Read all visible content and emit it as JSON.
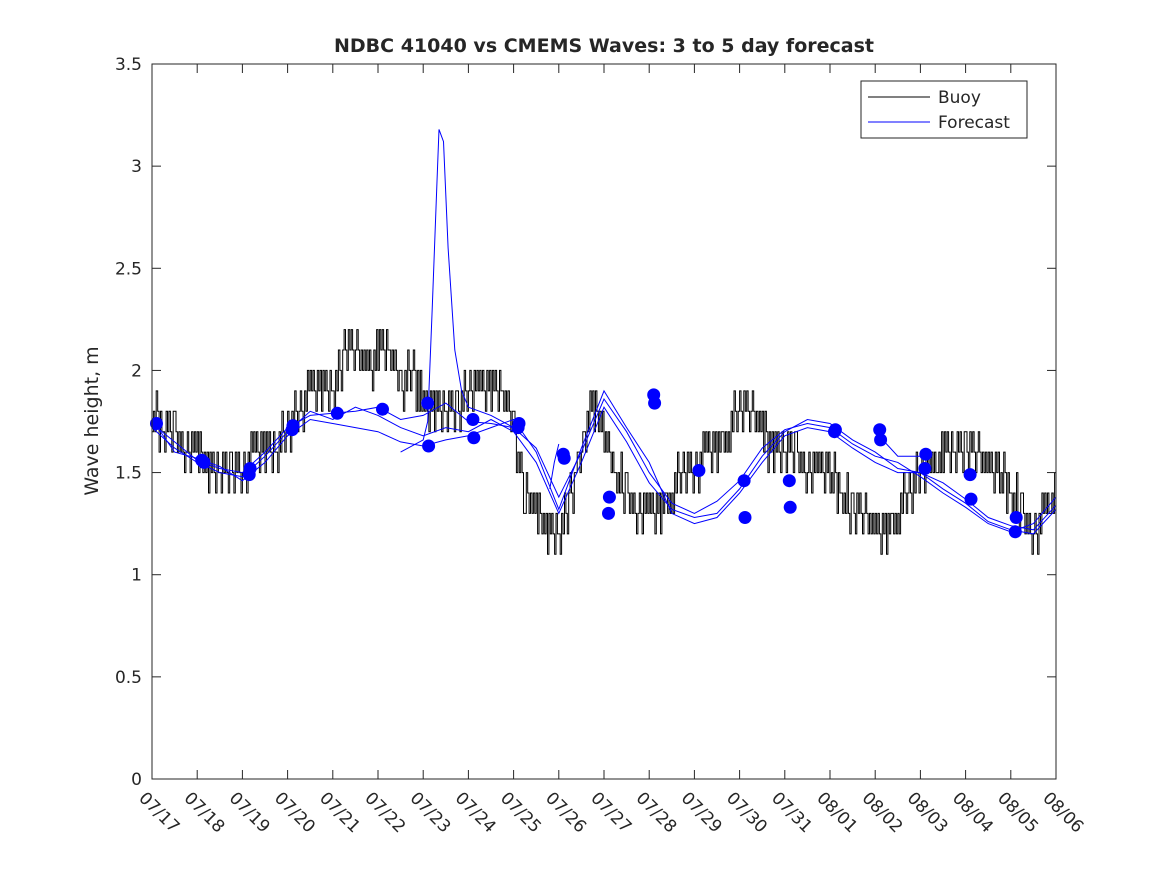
{
  "chart_data": {
    "type": "line",
    "title": "NDBC 41040 vs CMEMS Waves: 3 to 5 day forecast",
    "xlabel": "",
    "ylabel": "Wave height, m",
    "xlim": [
      "07/17",
      "08/06"
    ],
    "ylim": [
      0,
      3.5
    ],
    "yticks": [
      0,
      0.5,
      1,
      1.5,
      2,
      2.5,
      3,
      3.5
    ],
    "ytick_labels": [
      "0",
      "0.5",
      "1",
      "1.5",
      "2",
      "2.5",
      "3",
      "3.5"
    ],
    "xtick_labels": [
      "07/17",
      "07/18",
      "07/19",
      "07/20",
      "07/21",
      "07/22",
      "07/23",
      "07/24",
      "07/25",
      "07/26",
      "07/27",
      "07/28",
      "07/29",
      "07/30",
      "07/31",
      "08/01",
      "08/02",
      "08/03",
      "08/04",
      "08/05",
      "08/06"
    ],
    "grid": false,
    "legend_position": "top-right",
    "legend": [
      {
        "label": "Buoy",
        "color": "#000000"
      },
      {
        "label": "Forecast",
        "color": "#0000ff"
      }
    ],
    "buoy": {
      "name": "Buoy",
      "color": "#000000",
      "x": [
        0.0,
        0.25,
        0.5,
        0.75,
        1.0,
        1.25,
        1.5,
        1.75,
        2.0,
        2.25,
        2.5,
        2.75,
        3.0,
        3.25,
        3.5,
        3.75,
        4.0,
        4.25,
        4.5,
        4.75,
        5.0,
        5.25,
        5.5,
        5.75,
        6.0,
        6.25,
        6.5,
        6.75,
        7.0,
        7.25,
        7.5,
        7.75,
        8.0,
        8.25,
        8.5,
        8.75,
        9.0,
        9.25,
        9.5,
        9.75,
        10.0,
        10.25,
        10.5,
        10.75,
        11.0,
        11.25,
        11.5,
        11.75,
        12.0,
        12.25,
        12.5,
        12.75,
        13.0,
        13.25,
        13.5,
        13.75,
        14.0,
        14.25,
        14.5,
        14.75,
        15.0,
        15.25,
        15.5,
        15.75,
        16.0,
        16.25,
        16.5,
        16.75,
        17.0,
        17.25,
        17.5,
        17.75,
        18.0,
        18.25,
        18.5,
        18.75,
        19.0,
        19.25,
        19.5,
        19.75,
        20.0
      ],
      "y": [
        1.75,
        1.72,
        1.65,
        1.6,
        1.55,
        1.5,
        1.5,
        1.52,
        1.5,
        1.55,
        1.6,
        1.55,
        1.7,
        1.8,
        1.85,
        1.9,
        1.9,
        2.05,
        2.05,
        2.0,
        2.05,
        2.1,
        1.9,
        1.95,
        1.8,
        1.75,
        1.8,
        1.8,
        1.85,
        1.85,
        1.9,
        1.9,
        1.65,
        1.35,
        1.25,
        1.15,
        1.2,
        1.35,
        1.55,
        1.8,
        1.7,
        1.45,
        1.35,
        1.3,
        1.25,
        1.25,
        1.35,
        1.45,
        1.5,
        1.55,
        1.6,
        1.7,
        1.8,
        1.75,
        1.65,
        1.6,
        1.55,
        1.55,
        1.5,
        1.45,
        1.45,
        1.4,
        1.3,
        1.25,
        1.15,
        1.2,
        1.3,
        1.4,
        1.45,
        1.5,
        1.55,
        1.55,
        1.6,
        1.55,
        1.5,
        1.45,
        1.4,
        1.3,
        1.2,
        1.25,
        1.35
      ]
    },
    "series": [
      {
        "name": "Forecast",
        "color": "#0000ff",
        "x": [
          0.0,
          0.5,
          1.0,
          1.5,
          2.0,
          2.5,
          3.0,
          3.5,
          4.0,
          4.5,
          5.0,
          5.5,
          6.0,
          6.5,
          7.0,
          7.5,
          8.0,
          8.5,
          9.0,
          9.5,
          10.0,
          10.5,
          11.0,
          11.5,
          12.0,
          12.5,
          13.0,
          13.5,
          14.0,
          14.5,
          15.0,
          15.5,
          16.0,
          16.5,
          17.0,
          17.5,
          18.0,
          18.5,
          19.0,
          19.5,
          20.0
        ],
        "y": [
          1.74,
          1.65,
          1.56,
          1.52,
          1.5,
          1.6,
          1.72,
          1.78,
          1.79,
          1.8,
          1.82,
          1.76,
          1.78,
          1.84,
          1.75,
          1.74,
          1.72,
          1.62,
          1.38,
          1.6,
          1.86,
          1.7,
          1.5,
          1.35,
          1.3,
          1.36,
          1.46,
          1.62,
          1.71,
          1.74,
          1.72,
          1.64,
          1.58,
          1.55,
          1.48,
          1.4,
          1.33,
          1.25,
          1.21,
          1.25,
          1.38
        ]
      },
      {
        "name": "Forecast",
        "color": "#0000ff",
        "x": [
          0.0,
          0.5,
          1.0,
          1.5,
          2.0,
          2.5,
          3.0,
          3.5,
          4.0,
          4.5,
          5.0,
          5.5,
          6.0,
          6.5,
          7.0,
          7.5,
          8.0,
          8.5,
          9.0,
          9.5,
          10.0,
          10.5,
          11.0,
          11.5,
          12.0,
          12.5,
          13.0,
          13.5,
          14.0,
          14.5,
          15.0,
          15.5,
          16.0,
          16.5,
          17.0,
          17.5,
          18.0,
          18.5,
          19.0,
          19.5,
          20.0
        ],
        "y": [
          1.72,
          1.62,
          1.55,
          1.5,
          1.48,
          1.58,
          1.7,
          1.8,
          1.76,
          1.82,
          1.78,
          1.72,
          1.68,
          1.72,
          1.7,
          1.76,
          1.7,
          1.55,
          1.3,
          1.55,
          1.82,
          1.65,
          1.45,
          1.32,
          1.28,
          1.3,
          1.42,
          1.58,
          1.7,
          1.76,
          1.74,
          1.66,
          1.6,
          1.52,
          1.5,
          1.45,
          1.37,
          1.28,
          1.24,
          1.22,
          1.34
        ]
      },
      {
        "name": "Forecast",
        "color": "#0000ff",
        "x": [
          0.0,
          0.5,
          1.0,
          1.5,
          2.0,
          2.5,
          3.0,
          3.5,
          4.0,
          4.5,
          5.0,
          5.5,
          6.0,
          6.5,
          7.0,
          7.5,
          8.0,
          8.5,
          9.0,
          9.5,
          10.0,
          10.5,
          11.0,
          11.5,
          12.0,
          12.5,
          13.0,
          13.5,
          14.0,
          14.5,
          15.0,
          15.5,
          16.0,
          16.5,
          17.0,
          17.5,
          18.0,
          18.5,
          19.0,
          19.5,
          20.0
        ],
        "y": [
          1.76,
          1.6,
          1.57,
          1.53,
          1.46,
          1.55,
          1.68,
          1.76,
          1.74,
          1.72,
          1.7,
          1.65,
          1.63,
          1.66,
          1.68,
          1.72,
          1.76,
          1.6,
          1.32,
          1.62,
          1.9,
          1.72,
          1.55,
          1.3,
          1.25,
          1.28,
          1.4,
          1.55,
          1.68,
          1.72,
          1.7,
          1.62,
          1.55,
          1.5,
          1.5,
          1.42,
          1.35,
          1.26,
          1.22,
          1.2,
          1.32
        ]
      },
      {
        "name": "Forecast",
        "color": "#0000ff",
        "x": [
          5.5,
          6.0,
          6.1,
          6.2,
          6.3,
          6.35,
          6.45,
          6.55,
          6.7,
          6.85,
          7.0,
          7.5,
          8.0
        ],
        "y": [
          1.6,
          1.66,
          1.75,
          2.3,
          2.9,
          3.18,
          3.12,
          2.6,
          2.1,
          1.9,
          1.82,
          1.78,
          1.72
        ]
      },
      {
        "name": "Forecast",
        "color": "#0000ff",
        "x": [
          8.8,
          8.9,
          9.0
        ],
        "y": [
          1.42,
          1.55,
          1.64
        ]
      },
      {
        "name": "Forecast",
        "color": "#0000ff",
        "x": [
          16.0,
          16.5,
          17.0
        ],
        "y": [
          1.7,
          1.58,
          1.58
        ]
      }
    ],
    "markers": {
      "name": "Forecast",
      "color": "#0000ff",
      "x": [
        0.1,
        1.1,
        1.15,
        2.15,
        2.17,
        3.1,
        3.12,
        4.1,
        5.1,
        6.1,
        6.12,
        7.1,
        7.12,
        8.1,
        8.12,
        9.1,
        9.12,
        10.1,
        10.12,
        11.1,
        11.12,
        12.1,
        13.1,
        13.12,
        14.1,
        14.12,
        15.1,
        15.12,
        16.1,
        16.12,
        17.1,
        17.12,
        18.1,
        18.12,
        19.1,
        19.12
      ],
      "y": [
        1.74,
        1.56,
        1.55,
        1.49,
        1.52,
        1.71,
        1.73,
        1.79,
        1.81,
        1.84,
        1.63,
        1.76,
        1.67,
        1.72,
        1.74,
        1.59,
        1.57,
        1.3,
        1.38,
        1.88,
        1.84,
        1.51,
        1.46,
        1.28,
        1.46,
        1.33,
        1.7,
        1.71,
        1.71,
        1.66,
        1.52,
        1.59,
        1.49,
        1.37,
        1.21,
        1.28
      ]
    }
  }
}
